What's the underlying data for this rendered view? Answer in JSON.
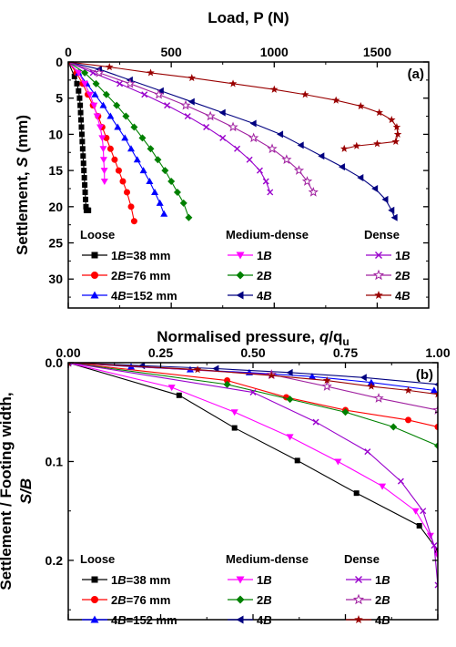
{
  "chart_data": [
    {
      "type": "line",
      "panel_label": "(a)",
      "xlabel": "Load, P (N)",
      "ylabel": "Settlement, S (mm)",
      "xlim": [
        0,
        1750
      ],
      "ylim": [
        0,
        34
      ],
      "x_ticks": [
        "0",
        "500",
        "1000",
        "1500"
      ],
      "y_ticks": [
        "0",
        "5",
        "10",
        "15",
        "20",
        "25",
        "30"
      ],
      "x_axis_position": "top",
      "y_inverted": true,
      "legend_groups": [
        {
          "title": "Loose",
          "entries": [
            "1B=38 mm",
            "2B=76 mm",
            "4B=152 mm"
          ]
        },
        {
          "title": "Medium-dense",
          "entries": [
            "1B",
            "2B",
            "4B"
          ]
        },
        {
          "title": "Dense",
          "entries": [
            "1B",
            "2B",
            "4B"
          ]
        }
      ],
      "series": [
        {
          "name": "Loose 1B=38 mm",
          "color": "#000000",
          "marker": "square",
          "x": [
            0,
            30,
            42,
            50,
            55,
            58,
            60,
            62,
            64,
            66,
            68,
            70,
            72,
            74,
            76,
            78,
            80,
            82,
            84,
            86,
            88,
            90,
            92,
            94,
            96,
            98
          ],
          "y": [
            0,
            2,
            3,
            4,
            5,
            6,
            7,
            8,
            9,
            10,
            11,
            12,
            13,
            14,
            15,
            16,
            17,
            18,
            19,
            20,
            20.5,
            20.5,
            20.5,
            20.5,
            20.5,
            20.5
          ]
        },
        {
          "name": "Loose 2B=76 mm",
          "color": "#ff0000",
          "marker": "circle",
          "x": [
            0,
            40,
            70,
            95,
            120,
            145,
            165,
            185,
            205,
            225,
            245,
            265,
            285,
            305,
            320
          ],
          "y": [
            0,
            1.5,
            3,
            4.5,
            6,
            7.5,
            9,
            10.5,
            12,
            13.5,
            15,
            16.5,
            18,
            20,
            22
          ]
        },
        {
          "name": "Loose 4B=152 mm",
          "color": "#0000ff",
          "marker": "triangle-up",
          "x": [
            0,
            50,
            90,
            130,
            170,
            205,
            240,
            275,
            305,
            335,
            365,
            395,
            420,
            445,
            465
          ],
          "y": [
            0,
            1.5,
            3,
            4.5,
            6,
            7.5,
            9,
            10.5,
            12,
            13.5,
            15,
            16.5,
            18,
            19.5,
            21
          ]
        },
        {
          "name": "Medium-dense 1B",
          "color": "#ff00ff",
          "marker": "triangle-down",
          "x": [
            0,
            50,
            80,
            105,
            125,
            140,
            155,
            165,
            170,
            172,
            175,
            176
          ],
          "y": [
            0,
            1.5,
            3,
            4.5,
            6,
            7.5,
            9,
            10.5,
            12,
            13.5,
            15,
            16.5
          ]
        },
        {
          "name": "Medium-dense 2B",
          "color": "#008000",
          "marker": "diamond",
          "x": [
            0,
            80,
            135,
            185,
            235,
            280,
            320,
            360,
            400,
            435,
            470,
            500,
            530,
            560,
            585
          ],
          "y": [
            0,
            1.5,
            3,
            4.5,
            6,
            7.5,
            9,
            10.5,
            12,
            13.5,
            15,
            16.5,
            18,
            19.5,
            21.5
          ]
        },
        {
          "name": "Medium-dense 4B",
          "color": "#000080",
          "marker": "triangle-left",
          "x": [
            0,
            150,
            300,
            450,
            600,
            750,
            900,
            1030,
            1130,
            1230,
            1330,
            1420,
            1490,
            1540,
            1570,
            1585
          ],
          "y": [
            0,
            1,
            2.5,
            4,
            5.5,
            7,
            8.5,
            10,
            11.5,
            13,
            14.5,
            16,
            17.5,
            19,
            20.5,
            21.5
          ]
        },
        {
          "name": "Dense 1B",
          "color": "#9900cc",
          "marker": "x",
          "x": [
            0,
            120,
            250,
            370,
            480,
            580,
            670,
            750,
            820,
            880,
            930,
            960,
            980
          ],
          "y": [
            0,
            1.5,
            3,
            4.5,
            6,
            7.5,
            9,
            10.5,
            12,
            13.5,
            15,
            16.5,
            18
          ]
        },
        {
          "name": "Dense 2B",
          "color": "#a020a0",
          "marker": "star-open",
          "x": [
            0,
            150,
            300,
            440,
            570,
            690,
            800,
            900,
            990,
            1060,
            1120,
            1160,
            1190
          ],
          "y": [
            0,
            1.5,
            3,
            4.5,
            6,
            7.5,
            9,
            10.5,
            12,
            13.5,
            15,
            16.5,
            18
          ]
        },
        {
          "name": "Dense 4B",
          "color": "#990000",
          "marker": "star",
          "x": [
            0,
            200,
            400,
            600,
            800,
            1000,
            1150,
            1300,
            1420,
            1510,
            1570,
            1595,
            1600,
            1590,
            1500,
            1400,
            1340
          ],
          "y": [
            0,
            0.7,
            1.5,
            2.2,
            3,
            3.8,
            4.5,
            5.3,
            6.1,
            7,
            8,
            9,
            10,
            11,
            11.3,
            11.6,
            12
          ]
        }
      ]
    },
    {
      "type": "line",
      "panel_label": "(b)",
      "xlabel": "Normalised pressure, q/qu",
      "ylabel": "Settlement / Footing width, S/B",
      "xlim": [
        0,
        1.0
      ],
      "ylim": [
        0,
        0.26
      ],
      "x_ticks": [
        "0.00",
        "0.25",
        "0.50",
        "0.75",
        "1.00"
      ],
      "y_ticks": [
        "0.0",
        "0.1",
        "0.2"
      ],
      "x_axis_position": "top",
      "y_inverted": true,
      "legend_groups": [
        {
          "title": "Loose",
          "entries": [
            "1B=38 mm",
            "2B=76 mm",
            "4B=152 mm"
          ]
        },
        {
          "title": "Medium-dense",
          "entries": [
            "1B",
            "2B",
            "4B"
          ]
        },
        {
          "title": "Dense",
          "entries": [
            "1B",
            "2B",
            "4B"
          ]
        }
      ],
      "series": [
        {
          "name": "Loose 1B=38 mm",
          "color": "#000000",
          "marker": "square",
          "x": [
            0,
            0.3,
            0.45,
            0.62,
            0.78,
            0.95,
            1.0
          ],
          "y": [
            0,
            0.033,
            0.066,
            0.099,
            0.132,
            0.165,
            0.19
          ]
        },
        {
          "name": "Loose 2B=76 mm",
          "color": "#ff0000",
          "marker": "circle",
          "x": [
            0,
            0.43,
            0.59,
            0.75,
            0.92,
            1.0
          ],
          "y": [
            0,
            0.018,
            0.035,
            0.048,
            0.058,
            0.065
          ]
        },
        {
          "name": "Loose 4B=152 mm",
          "color": "#0000ff",
          "marker": "triangle-up",
          "x": [
            0,
            0.17,
            0.33,
            0.49,
            0.66,
            0.82,
            0.99
          ],
          "y": [
            0,
            0.004,
            0.007,
            0.01,
            0.014,
            0.02,
            0.028
          ]
        },
        {
          "name": "Medium-dense 1B",
          "color": "#ff00ff",
          "marker": "triangle-down",
          "x": [
            0,
            0.28,
            0.45,
            0.6,
            0.73,
            0.85,
            0.94,
            0.98,
            1.0
          ],
          "y": [
            0,
            0.025,
            0.05,
            0.075,
            0.1,
            0.125,
            0.15,
            0.175,
            0.195
          ]
        },
        {
          "name": "Medium-dense 2B",
          "color": "#008000",
          "marker": "diamond",
          "x": [
            0,
            0.43,
            0.6,
            0.75,
            0.88,
            1.0
          ],
          "y": [
            0,
            0.022,
            0.037,
            0.05,
            0.065,
            0.084
          ]
        },
        {
          "name": "Medium-dense 4B",
          "color": "#000080",
          "marker": "triangle-left",
          "x": [
            0,
            0.2,
            0.4,
            0.6,
            0.8,
            1.0
          ],
          "y": [
            0,
            0.003,
            0.006,
            0.01,
            0.015,
            0.022
          ]
        },
        {
          "name": "Dense 1B",
          "color": "#9900cc",
          "marker": "x",
          "x": [
            0,
            0.5,
            0.67,
            0.81,
            0.9,
            0.96,
            0.99,
            1.0
          ],
          "y": [
            0,
            0.03,
            0.06,
            0.09,
            0.12,
            0.15,
            0.185,
            0.225
          ]
        },
        {
          "name": "Dense 2B",
          "color": "#a020a0",
          "marker": "star-open",
          "x": [
            0,
            0.55,
            0.7,
            0.84,
            1.0
          ],
          "y": [
            0,
            0.012,
            0.024,
            0.036,
            0.048
          ]
        },
        {
          "name": "Dense 4B",
          "color": "#990000",
          "marker": "star",
          "x": [
            0,
            0.35,
            0.55,
            0.7,
            0.82,
            0.92,
            1.0
          ],
          "y": [
            0,
            0.007,
            0.013,
            0.018,
            0.024,
            0.028,
            0.032
          ]
        }
      ]
    }
  ]
}
